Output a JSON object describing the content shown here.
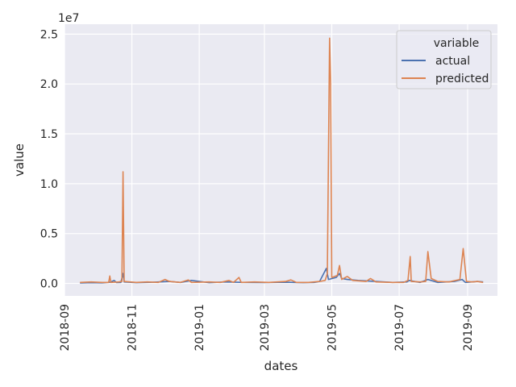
{
  "chart_data": {
    "type": "line",
    "title": "",
    "xlabel": "dates",
    "ylabel": "value",
    "y_offset_text": "1e7",
    "x_type": "date",
    "xlim": [
      "2018-09-01",
      "2019-09-28"
    ],
    "ylim": [
      -1250000,
      26000000
    ],
    "x_ticks": [
      "2018-09-01",
      "2018-11-01",
      "2019-01-01",
      "2019-03-01",
      "2019-05-01",
      "2019-07-01",
      "2019-09-01"
    ],
    "x_tick_labels": [
      "2018-09",
      "2018-11",
      "2019-01",
      "2019-03",
      "2019-05",
      "2019-07",
      "2019-09"
    ],
    "y_ticks": [
      0,
      5000000,
      10000000,
      15000000,
      20000000,
      25000000
    ],
    "y_tick_labels": [
      "0.0",
      "0.5",
      "1.0",
      "1.5",
      "2.0",
      "2.5"
    ],
    "grid": true,
    "background": "#eaeaf2",
    "legend": {
      "title": "variable",
      "placement": "top-right"
    },
    "series": [
      {
        "name": "actual",
        "color": "#4c72b0",
        "points": [
          [
            "2018-09-15",
            50000
          ],
          [
            "2018-09-25",
            80000
          ],
          [
            "2018-10-05",
            60000
          ],
          [
            "2018-10-12",
            120000
          ],
          [
            "2018-10-16",
            300000
          ],
          [
            "2018-10-18",
            90000
          ],
          [
            "2018-10-22",
            100000
          ],
          [
            "2018-10-24",
            1000000
          ],
          [
            "2018-10-25",
            150000
          ],
          [
            "2018-11-05",
            80000
          ],
          [
            "2018-11-20",
            120000
          ],
          [
            "2018-12-05",
            200000
          ],
          [
            "2018-12-15",
            100000
          ],
          [
            "2018-12-25",
            300000
          ],
          [
            "2019-01-10",
            80000
          ],
          [
            "2019-01-25",
            150000
          ],
          [
            "2019-02-10",
            100000
          ],
          [
            "2019-02-28",
            90000
          ],
          [
            "2019-03-20",
            120000
          ],
          [
            "2019-04-05",
            80000
          ],
          [
            "2019-04-15",
            100000
          ],
          [
            "2019-04-20",
            200000
          ],
          [
            "2019-04-26",
            1500000
          ],
          [
            "2019-04-28",
            400000
          ],
          [
            "2019-05-05",
            600000
          ],
          [
            "2019-05-08",
            1000000
          ],
          [
            "2019-05-10",
            500000
          ],
          [
            "2019-05-15",
            400000
          ],
          [
            "2019-05-25",
            300000
          ],
          [
            "2019-06-10",
            200000
          ],
          [
            "2019-06-25",
            100000
          ],
          [
            "2019-07-08",
            150000
          ],
          [
            "2019-07-10",
            300000
          ],
          [
            "2019-07-20",
            100000
          ],
          [
            "2019-07-27",
            400000
          ],
          [
            "2019-08-05",
            100000
          ],
          [
            "2019-08-20",
            200000
          ],
          [
            "2019-08-27",
            400000
          ],
          [
            "2019-08-30",
            100000
          ],
          [
            "2019-09-10",
            200000
          ],
          [
            "2019-09-15",
            150000
          ]
        ]
      },
      {
        "name": "predicted",
        "color": "#dd8452",
        "points": [
          [
            "2018-09-15",
            100000
          ],
          [
            "2018-09-25",
            150000
          ],
          [
            "2018-10-05",
            100000
          ],
          [
            "2018-10-11",
            100000
          ],
          [
            "2018-10-12",
            750000
          ],
          [
            "2018-10-13",
            100000
          ],
          [
            "2018-10-20",
            150000
          ],
          [
            "2018-10-23",
            200000
          ],
          [
            "2018-10-24",
            11200000
          ],
          [
            "2018-10-25",
            200000
          ],
          [
            "2018-11-05",
            100000
          ],
          [
            "2018-11-15",
            150000
          ],
          [
            "2018-11-25",
            100000
          ],
          [
            "2018-12-01",
            400000
          ],
          [
            "2018-12-05",
            200000
          ],
          [
            "2018-12-15",
            100000
          ],
          [
            "2018-12-22",
            350000
          ],
          [
            "2018-12-25",
            100000
          ],
          [
            "2019-01-10",
            150000
          ],
          [
            "2019-01-20",
            100000
          ],
          [
            "2019-01-28",
            300000
          ],
          [
            "2019-02-01",
            100000
          ],
          [
            "2019-02-06",
            600000
          ],
          [
            "2019-02-08",
            100000
          ],
          [
            "2019-02-20",
            150000
          ],
          [
            "2019-03-05",
            100000
          ],
          [
            "2019-03-20",
            200000
          ],
          [
            "2019-03-25",
            350000
          ],
          [
            "2019-03-30",
            100000
          ],
          [
            "2019-04-10",
            100000
          ],
          [
            "2019-04-20",
            200000
          ],
          [
            "2019-04-25",
            300000
          ],
          [
            "2019-04-27",
            1000000
          ],
          [
            "2019-04-29",
            24600000
          ],
          [
            "2019-04-30",
            20000000
          ],
          [
            "2019-05-01",
            600000
          ],
          [
            "2019-05-06",
            800000
          ],
          [
            "2019-05-08",
            1800000
          ],
          [
            "2019-05-10",
            400000
          ],
          [
            "2019-05-15",
            700000
          ],
          [
            "2019-05-20",
            300000
          ],
          [
            "2019-06-01",
            200000
          ],
          [
            "2019-06-05",
            500000
          ],
          [
            "2019-06-10",
            150000
          ],
          [
            "2019-06-25",
            100000
          ],
          [
            "2019-07-05",
            100000
          ],
          [
            "2019-07-09",
            300000
          ],
          [
            "2019-07-11",
            2700000
          ],
          [
            "2019-07-12",
            200000
          ],
          [
            "2019-07-20",
            150000
          ],
          [
            "2019-07-25",
            200000
          ],
          [
            "2019-07-27",
            3200000
          ],
          [
            "2019-07-30",
            500000
          ],
          [
            "2019-08-05",
            200000
          ],
          [
            "2019-08-15",
            150000
          ],
          [
            "2019-08-25",
            400000
          ],
          [
            "2019-08-28",
            3500000
          ],
          [
            "2019-08-31",
            200000
          ],
          [
            "2019-09-05",
            150000
          ],
          [
            "2019-09-10",
            200000
          ],
          [
            "2019-09-15",
            100000
          ]
        ]
      }
    ]
  }
}
